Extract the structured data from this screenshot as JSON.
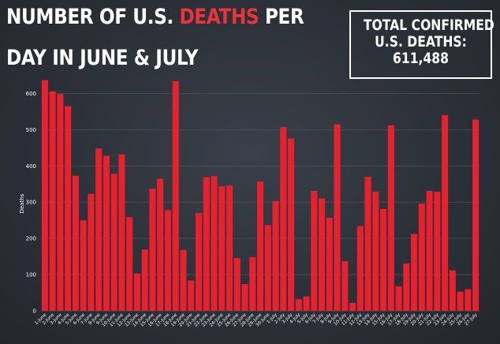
{
  "headline": {
    "line1_part1": "NUMBER OF U.S. ",
    "line1_highlight": "DEATHS",
    "line1_part2": " PER",
    "line2": "DAY IN JUNE & JULY"
  },
  "total_box": {
    "line1": "TOTAL CONFIRMED",
    "line2": "U.S. DEATHS:",
    "value": "611,488"
  },
  "colors": {
    "bar": "#e8212e",
    "text": "#ffffff",
    "grid": "#4a5058",
    "accent": "#e8343b"
  },
  "chart_data": {
    "type": "bar",
    "ylabel": "Deaths",
    "xlabel": "",
    "ylim": [
      0,
      650
    ],
    "yticks": [
      0,
      100,
      200,
      300,
      400,
      500,
      600
    ],
    "grid": true,
    "categories": [
      "1-June",
      "2-June",
      "3-June",
      "4-June",
      "5-June",
      "6-June",
      "7-June",
      "8-June",
      "9-June",
      "10-June",
      "11-June",
      "12-June",
      "13-June",
      "14-June",
      "15-June",
      "16-June",
      "17-June",
      "18-June",
      "19-June",
      "20-June",
      "21-June",
      "22-June",
      "23-June",
      "24-June",
      "25-June",
      "26-June",
      "27-June",
      "28-June",
      "29-June",
      "30-June",
      "1-July",
      "2-July",
      "3-July",
      "4-July",
      "5-July",
      "6-July",
      "7-July",
      "8-July",
      "9-July",
      "10-July",
      "11-July",
      "12-July",
      "13-July",
      "14-July",
      "15-July",
      "16-July",
      "17-July",
      "18-July",
      "19-July",
      "20-July",
      "21-July",
      "22-July",
      "23-July",
      "24-July",
      "25-July",
      "26-July",
      "27-July"
    ],
    "values": [
      637,
      606,
      598,
      565,
      373,
      250,
      323,
      448,
      428,
      378,
      432,
      259,
      103,
      169,
      337,
      365,
      278,
      634,
      168,
      84,
      270,
      369,
      372,
      344,
      346,
      146,
      74,
      148,
      357,
      237,
      303,
      507,
      476,
      32,
      40,
      331,
      310,
      257,
      515,
      137,
      22,
      234,
      370,
      329,
      281,
      512,
      68,
      131,
      212,
      296,
      331,
      329,
      540,
      112,
      53,
      60,
      528
    ]
  }
}
